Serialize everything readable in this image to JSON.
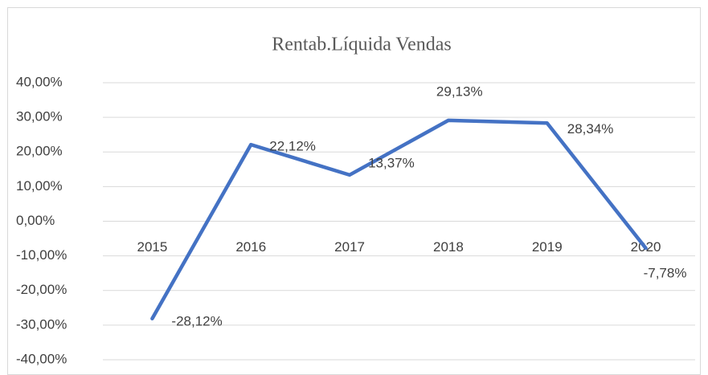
{
  "chart_data": {
    "type": "line",
    "title": "Rentab.Líquida Vendas",
    "categories": [
      "2015",
      "2016",
      "2017",
      "2018",
      "2019",
      "2020"
    ],
    "series": [
      {
        "name": "Rentab.Líquida Vendas",
        "color": "#4472c4",
        "values": [
          -28.12,
          22.12,
          13.37,
          29.13,
          28.34,
          -7.78
        ],
        "value_labels": [
          "-28,12%",
          "22,12%",
          "13,37%",
          "29,13%",
          "28,34%",
          "-7,78%"
        ]
      }
    ],
    "ylim": [
      -40,
      40
    ],
    "yticks": [
      {
        "value": -40,
        "label": "-40,00%"
      },
      {
        "value": -30,
        "label": "-30,00%"
      },
      {
        "value": -20,
        "label": "-20,00%"
      },
      {
        "value": -10,
        "label": "-10,00%"
      },
      {
        "value": 0,
        "label": "0,00%"
      },
      {
        "value": 10,
        "label": "10,00%"
      },
      {
        "value": 20,
        "label": "20,00%"
      },
      {
        "value": 30,
        "label": "30,00%"
      },
      {
        "value": 40,
        "label": "40,00%"
      }
    ],
    "grid": true
  }
}
